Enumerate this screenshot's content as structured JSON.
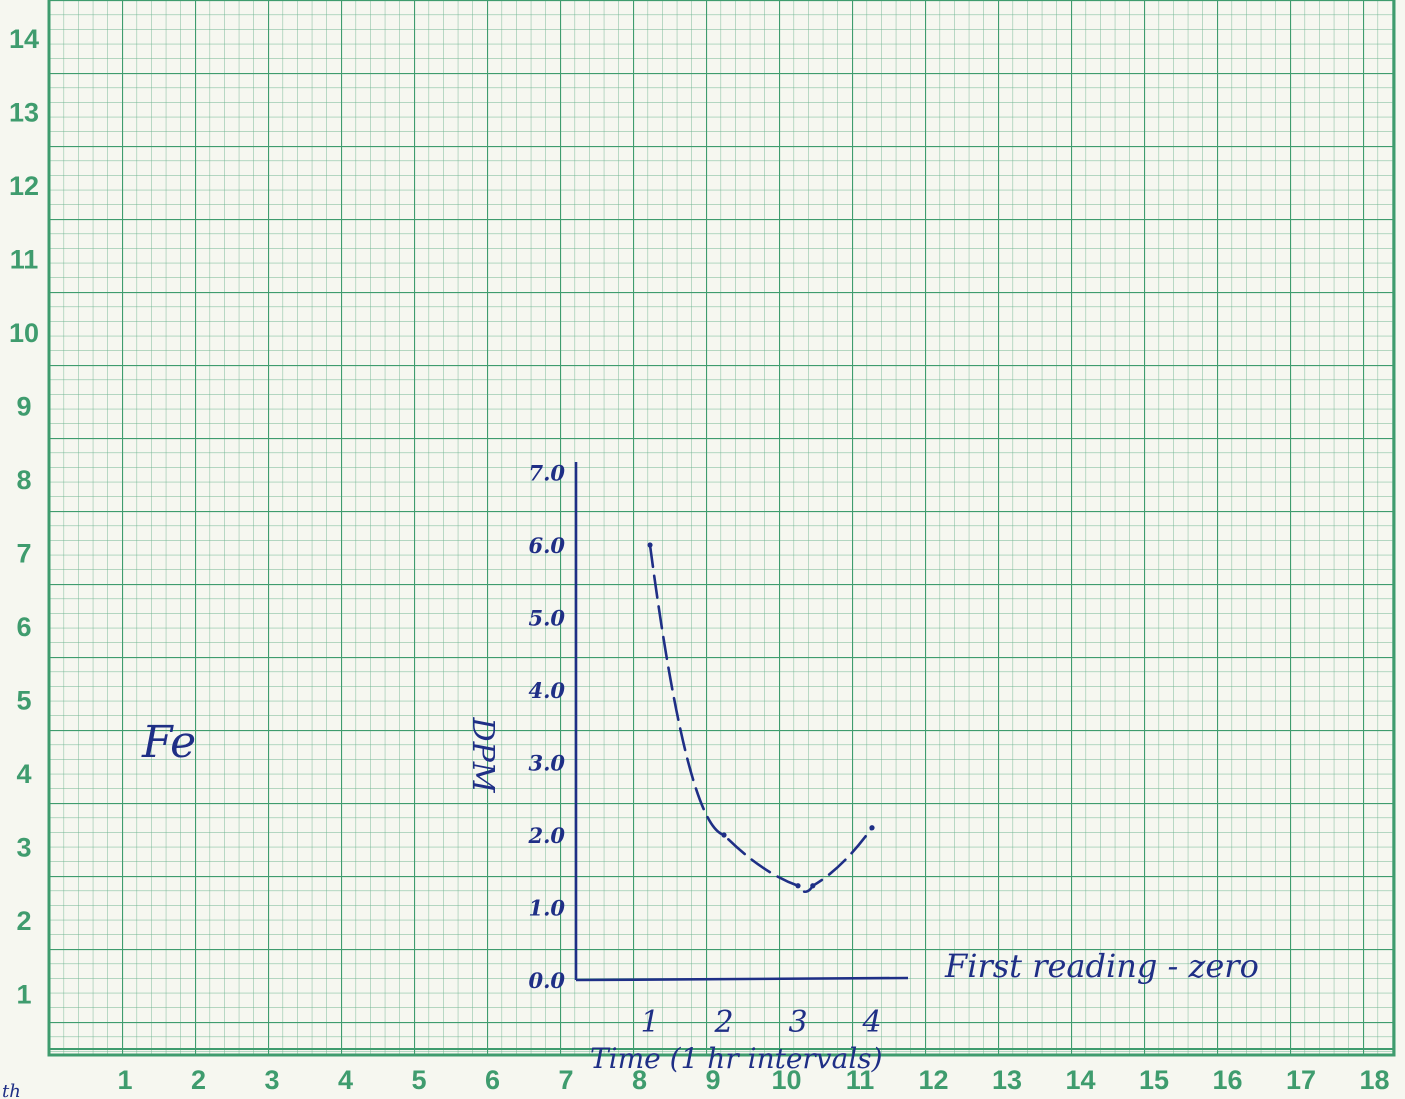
{
  "graph_paper": {
    "left_scale": [
      "14",
      "13",
      "12",
      "11",
      "10",
      "9",
      "8",
      "7",
      "6",
      "5",
      "4",
      "3",
      "2",
      "1"
    ],
    "bottom_scale": [
      "1",
      "2",
      "3",
      "4",
      "5",
      "6",
      "7",
      "8",
      "9",
      "10",
      "11",
      "12",
      "13",
      "14",
      "15",
      "16",
      "17",
      "18"
    ],
    "line_color": "#3f9c6e",
    "paper_color": "#f6f7f0"
  },
  "notes": {
    "element_label": "Fe",
    "baseline_note": "First reading - zero",
    "corner_mark": "th"
  },
  "chart_data": {
    "type": "line",
    "line_style": "dashed",
    "ink_color": "#1f2f86",
    "ylabel": "DPM",
    "xlabel": "Time (1 hr intervals)",
    "x_ticks": [
      "1",
      "2",
      "3",
      "4"
    ],
    "y_ticks": [
      "0.0",
      "1.0",
      "2.0",
      "3.0",
      "4.0",
      "5.0",
      "6.0",
      "7.0"
    ],
    "xlim": [
      0,
      4.5
    ],
    "ylim": [
      0,
      7
    ],
    "series": [
      {
        "x": [
          1,
          2,
          3,
          3.2,
          4
        ],
        "y": [
          6.0,
          2.0,
          1.3,
          1.3,
          2.1
        ]
      }
    ]
  }
}
